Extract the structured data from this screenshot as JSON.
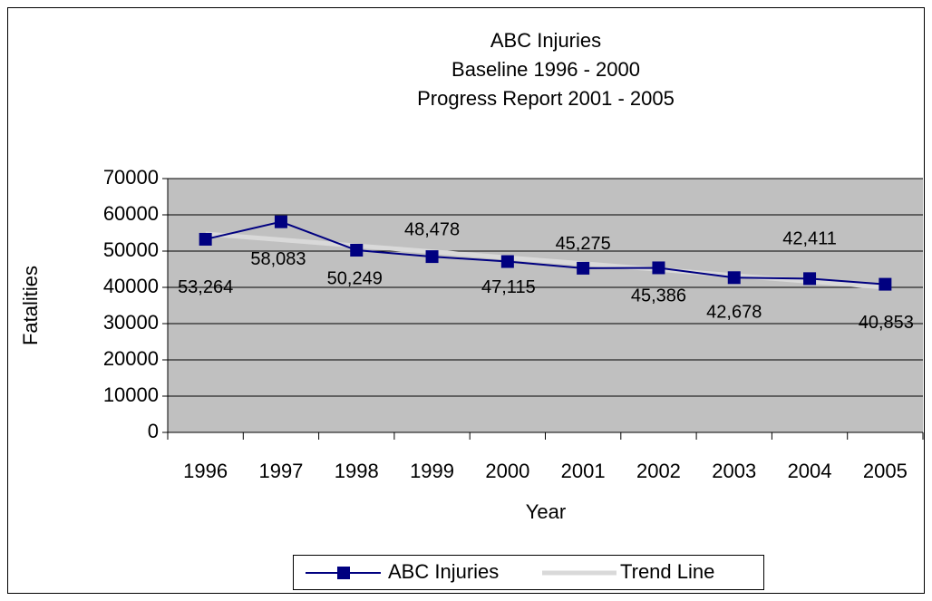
{
  "chart_data": {
    "type": "line",
    "title": [
      "ABC Injuries",
      "Baseline 1996 - 2000",
      "Progress Report 2001 - 2005"
    ],
    "x_label": "Year",
    "y_label": "Fatalities",
    "categories": [
      "1996",
      "1997",
      "1998",
      "1999",
      "2000",
      "2001",
      "2002",
      "2003",
      "2004",
      "2005"
    ],
    "series": [
      {
        "name": "ABC Injuries",
        "color": "#000080",
        "values": [
          53264,
          58083,
          50249,
          48478,
          47115,
          45275,
          45386,
          42678,
          42411,
          40853
        ],
        "value_labels": [
          "53,264",
          "58,083",
          "50,249",
          "48,478",
          "47,115",
          "45,275",
          "45,386",
          "42,678",
          "42,411",
          "40,853"
        ]
      },
      {
        "name": "Trend Line",
        "color": "#d9d9d9",
        "values": [
          54753,
          53114,
          51476,
          49837,
          48199,
          46560,
          44922,
          43283,
          41645,
          40006
        ]
      }
    ],
    "ylim": [
      0,
      70000
    ],
    "yticks": [
      0,
      10000,
      20000,
      30000,
      40000,
      50000,
      60000,
      70000
    ],
    "grid": true,
    "legend": "bottom",
    "plot_background": "#c0c0c0"
  }
}
